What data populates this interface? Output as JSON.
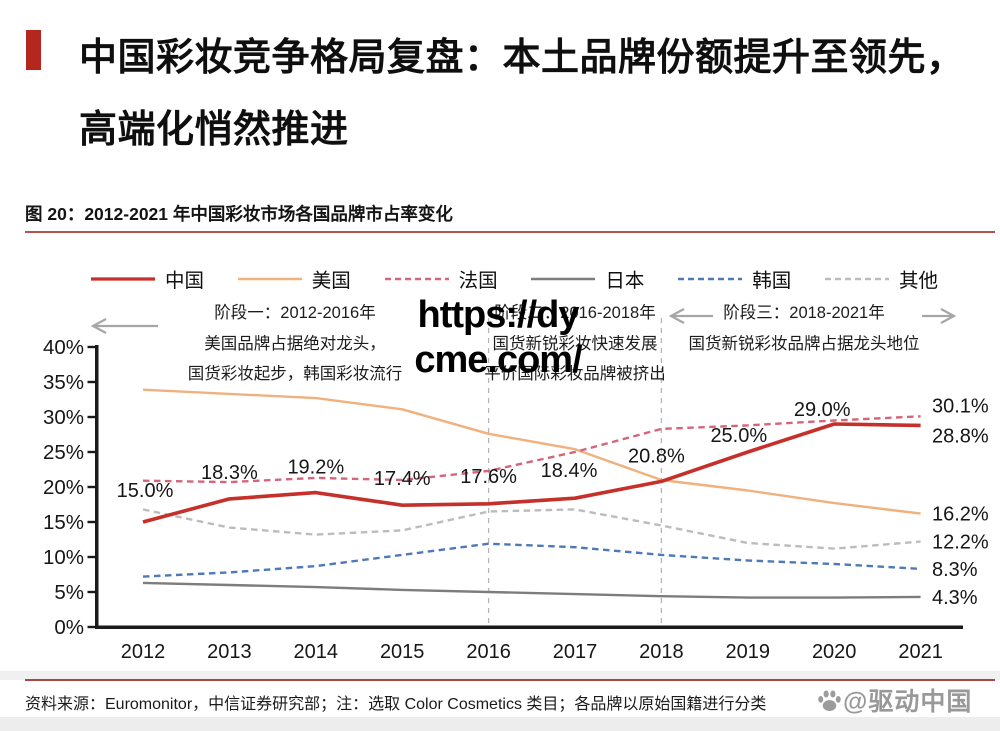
{
  "header": {
    "title_line1": "中国彩妆竞争格局复盘：本土品牌份额提升至领先，",
    "title_line2": "高端化悄然推进",
    "accent_color": "#b5261e"
  },
  "figure": {
    "caption": "图 20：2012-2021 年中国彩妆市场各国品牌市占率变化",
    "source_note": "资料来源：Euromonitor，中信证券研究部；注：选取 Color Cosmetics 类目；各品牌以原始国籍进行分类",
    "rule_color": "#b5534c"
  },
  "watermarks": {
    "center_line1": "https://dy",
    "center_line2": "cme.com/",
    "corner_text": "@驱动中国",
    "corner_icon": "paw-icon"
  },
  "annotations": {
    "stages": [
      {
        "title": "阶段一：2012-2016年",
        "lines": [
          "美国品牌占据绝对龙头，",
          "国货彩妆起步，韩国彩妆流行"
        ]
      },
      {
        "title": "阶段二：2016-2018年",
        "lines": [
          "国货新锐彩妆快速发展",
          "平价国际彩妆品牌被挤出"
        ]
      },
      {
        "title": "阶段三：2018-2021年",
        "lines": [
          "国货新锐彩妆品牌占据龙头地位"
        ]
      }
    ],
    "arrow_color": "#a6a6a6"
  },
  "chart_data": {
    "type": "line",
    "title": "2012-2021 年中国彩妆市场各国品牌市占率变化",
    "x": [
      2012,
      2013,
      2014,
      2015,
      2016,
      2017,
      2018,
      2019,
      2020,
      2021
    ],
    "xlabel": "",
    "ylabel": "",
    "ylim": [
      0,
      40
    ],
    "ytick_step": 5,
    "ytick_labels": [
      "0%",
      "5%",
      "10%",
      "15%",
      "20%",
      "25%",
      "30%",
      "35%",
      "40%"
    ],
    "grid": "off",
    "phase_divider_years": [
      2016,
      2018
    ],
    "legend_position": "top",
    "series": [
      {
        "id": "china",
        "name": "中国",
        "color": "#c5302a",
        "style": "solid",
        "width": 3.6,
        "values": [
          15.0,
          18.3,
          19.2,
          17.4,
          17.6,
          18.4,
          20.8,
          25.0,
          29.0,
          28.8
        ],
        "point_labels": [
          "15.0%",
          "18.3%",
          "19.2%",
          "17.4%",
          "17.6%",
          "18.4%",
          "20.8%",
          "25.0%",
          "29.0%"
        ],
        "end_label": "28.8%"
      },
      {
        "id": "usa",
        "name": "美国",
        "color": "#f0b17e",
        "style": "solid",
        "width": 2.4,
        "values": [
          33.9,
          33.3,
          32.7,
          31.1,
          27.6,
          25.4,
          21.0,
          19.5,
          17.7,
          16.2
        ],
        "end_label": "16.2%"
      },
      {
        "id": "france",
        "name": "法国",
        "color": "#d4657a",
        "style": "dashed",
        "width": 2.4,
        "values": [
          20.9,
          20.7,
          21.3,
          21.0,
          22.3,
          25.0,
          28.3,
          28.8,
          29.5,
          30.1
        ],
        "end_label": "30.1%"
      },
      {
        "id": "japan",
        "name": "日本",
        "color": "#7d7d7d",
        "style": "solid",
        "width": 2.4,
        "values": [
          6.3,
          6.0,
          5.7,
          5.3,
          5.0,
          4.7,
          4.4,
          4.2,
          4.2,
          4.3
        ],
        "end_label": "4.3%"
      },
      {
        "id": "korea",
        "name": "韩国",
        "color": "#4d79b8",
        "style": "dashed",
        "width": 2.4,
        "values": [
          7.2,
          7.8,
          8.7,
          10.3,
          11.9,
          11.4,
          10.3,
          9.5,
          9.0,
          8.3
        ],
        "end_label": "8.3%"
      },
      {
        "id": "other",
        "name": "其他",
        "color": "#bcbcbc",
        "style": "dashed",
        "width": 2.4,
        "values": [
          16.8,
          14.2,
          13.2,
          13.8,
          16.5,
          16.8,
          14.5,
          12.0,
          11.2,
          12.2
        ],
        "end_label": "12.2%"
      }
    ]
  }
}
